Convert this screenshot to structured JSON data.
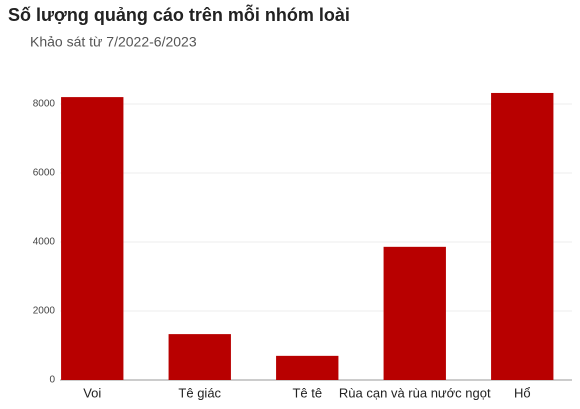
{
  "chart_data": {
    "type": "bar",
    "title": "Số lượng quảng cáo trên mỗi nhóm loài",
    "subtitle": "Khảo sát từ 7/2022-6/2023",
    "categories": [
      "Voi",
      "Tê giác",
      "Tê tê",
      "Rùa cạn và rùa nước ngọt",
      "Hổ"
    ],
    "values": [
      8200,
      1330,
      700,
      3860,
      8320
    ],
    "color": "#b80000",
    "ylim": [
      0,
      8800
    ],
    "yticks": [
      0,
      2000,
      4000,
      6000,
      8000
    ],
    "grid": true
  }
}
